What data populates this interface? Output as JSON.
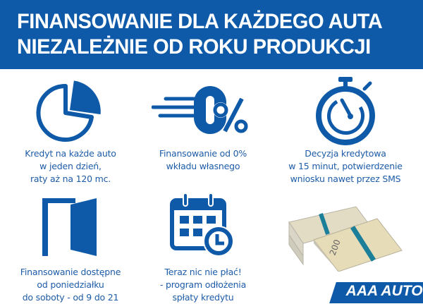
{
  "header": {
    "line1": "FINANSOWANIE DLA KAŻDEGO AUTA",
    "line2": "NIEZALEŻNIE OD ROKU PRODUKCJI"
  },
  "features": [
    {
      "icon": "pie-chart-icon",
      "lines": [
        "Kredyt na każde auto",
        "w jeden dzień,",
        "raty aż na 120 mc."
      ]
    },
    {
      "icon": "zero-percent-icon",
      "lines": [
        "Finansowanie od 0%",
        "wkładu własnego"
      ]
    },
    {
      "icon": "stopwatch-icon",
      "lines": [
        "Decyzja kredytowa",
        "w 15 minut, potwierdzenie",
        "wniosku nawet przez SMS"
      ]
    },
    {
      "icon": "open-door-icon",
      "lines": [
        "Finansowanie dostępne",
        "od poniedziałku",
        "do soboty - od 9 do 21"
      ]
    },
    {
      "icon": "calendar-clock-icon",
      "lines": [
        "Teraz nic nie płać!",
        "- program odłożenia",
        "spłaty kredytu"
      ]
    }
  ],
  "logo": {
    "text": "AAA AUTO"
  },
  "colors": {
    "brand_blue": "#0f5aa8",
    "text_blue": "#1d5ca8"
  }
}
